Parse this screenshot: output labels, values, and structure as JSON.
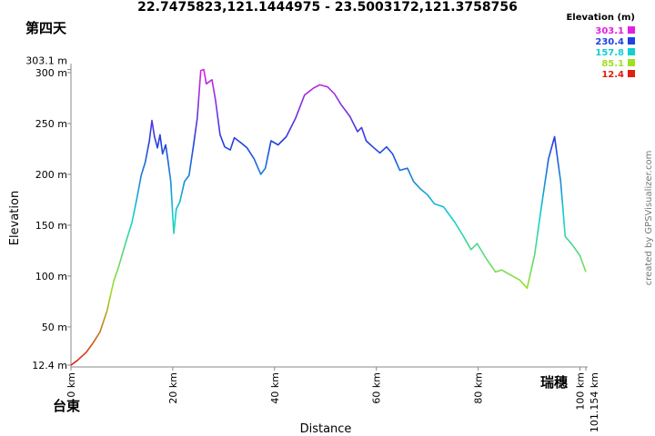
{
  "chart_data": {
    "type": "line",
    "title": "22.7475823,121.1444975 - 23.5003172,121.3758756",
    "xlabel": "Distance",
    "ylabel": "Elevation",
    "annotations": [
      "第四天",
      "台東",
      "瑞穗"
    ],
    "credit": "created by GPSVisualizer.com",
    "color_scale_title": "Elevation (m)",
    "color_scale": [
      {
        "value": 303.1,
        "color": "#e020e0"
      },
      {
        "value": 230.4,
        "color": "#2040e0"
      },
      {
        "value": 157.8,
        "color": "#10d0d0"
      },
      {
        "value": 85.1,
        "color": "#a0e020"
      },
      {
        "value": 12.4,
        "color": "#e02010"
      }
    ],
    "x": [
      0,
      1.25,
      3,
      4.3,
      5.7,
      7.1,
      8.4,
      9.3,
      10.7,
      12,
      12.9,
      13.8,
      14.6,
      15.4,
      15.9,
      16.4,
      17,
      17.5,
      18,
      18.6,
      19.1,
      19.6,
      20.2,
      20.7,
      21.4,
      22.3,
      23.2,
      24.1,
      24.8,
      25.5,
      26.1,
      26.6,
      27.7,
      28.4,
      29.3,
      30.2,
      31.3,
      32.1,
      33.4,
      34.6,
      36,
      37.3,
      38.2,
      39.3,
      40.7,
      42.3,
      44.1,
      45.9,
      47.7,
      48.9,
      50.4,
      51.8,
      53,
      54.8,
      56.3,
      57.1,
      58,
      59.3,
      60.7,
      62,
      63.2,
      64.6,
      66.1,
      67.3,
      68.6,
      70,
      71.4,
      73.2,
      75.4,
      77.1,
      78.6,
      79.8,
      81.6,
      83.4,
      84.6,
      86.4,
      88.2,
      89.6,
      91.1,
      92.5,
      93.8,
      95,
      96.2,
      97.1,
      98.6,
      100,
      101.154
    ],
    "values": [
      12.4,
      17,
      25,
      34,
      45,
      66,
      95,
      108,
      132,
      153,
      175,
      199,
      212,
      233,
      253,
      237,
      226,
      239,
      220,
      229,
      212,
      193,
      142,
      166,
      173,
      193,
      199,
      229,
      255,
      302,
      303.1,
      289,
      293,
      273,
      239,
      227,
      224,
      236,
      231,
      226,
      215,
      200,
      206,
      233,
      229,
      237,
      255,
      278,
      285,
      288,
      286,
      279,
      269,
      257,
      242,
      246,
      233,
      227,
      221,
      227,
      220,
      204,
      206,
      193,
      186,
      180,
      171,
      168,
      153,
      139,
      126,
      132,
      117,
      104,
      106,
      101,
      96,
      88,
      121,
      171,
      215,
      237,
      193,
      139,
      130,
      120,
      104
    ],
    "xlim": [
      0,
      101.154
    ],
    "xticks": [
      {
        "value": 0,
        "label": "0 km"
      },
      {
        "value": 20,
        "label": "20 km"
      },
      {
        "value": 40,
        "label": "40 km"
      },
      {
        "value": 60,
        "label": "60 km"
      },
      {
        "value": 80,
        "label": "80 km"
      },
      {
        "value": 100,
        "label": "100 km"
      },
      {
        "value": 101.154,
        "label": "101.154 km"
      }
    ],
    "ylim": [
      12.4,
      303.1
    ],
    "yticks": [
      {
        "value": 12.4,
        "label": "12.4 m"
      },
      {
        "value": 50,
        "label": "50 m"
      },
      {
        "value": 100,
        "label": "100 m"
      },
      {
        "value": 150,
        "label": "150 m"
      },
      {
        "value": 200,
        "label": "200 m"
      },
      {
        "value": 250,
        "label": "250 m"
      },
      {
        "value": 300,
        "label": "300 m"
      },
      {
        "value": 303.1,
        "label": "303.1 m"
      }
    ]
  }
}
